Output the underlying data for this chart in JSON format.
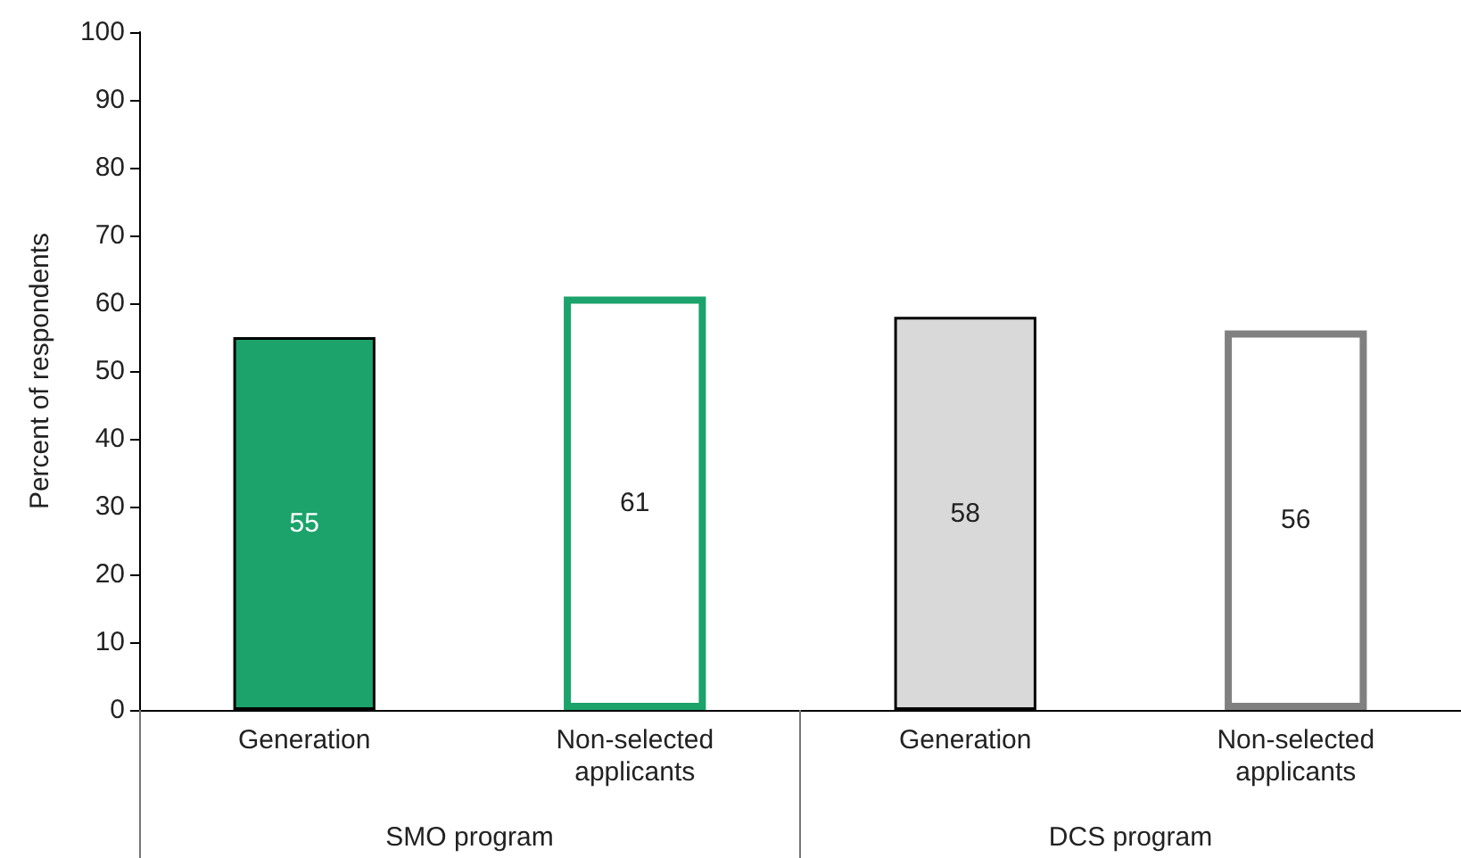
{
  "chart_data": {
    "type": "bar",
    "ylabel": "Percent of respondents",
    "categories": [
      "Generation",
      "Non-selected applicants",
      "Generation",
      "Non-selected applicants"
    ],
    "series": [
      {
        "colors": [
          "#1ba36b",
          null,
          "#d9d9d9",
          null
        ],
        "values": [
          55,
          null,
          58,
          null
        ]
      },
      {
        "colors": [
          null,
          "#1ba36b",
          null,
          "#808080"
        ],
        "values": [
          null,
          61,
          null,
          56
        ]
      }
    ],
    "ylim": [
      0,
      100
    ],
    "yticks": [
      0,
      10,
      20,
      30,
      40,
      50,
      60,
      70,
      80,
      90,
      100
    ],
    "data_labels": true,
    "annotations": [
      "SMO program",
      "DCS program"
    ]
  }
}
